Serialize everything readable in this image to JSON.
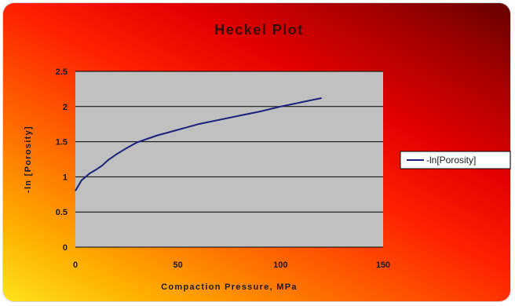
{
  "chart_data": {
    "type": "line",
    "title": "Heckel Plot",
    "xlabel": "Compaction Pressure, MPa",
    "ylabel": "-ln [Porosity]",
    "xlim": [
      0,
      150
    ],
    "ylim": [
      0,
      2.5
    ],
    "xticks": [
      "0",
      "50",
      "100",
      "150"
    ],
    "yticks": [
      "0",
      "0.5",
      "1",
      "1.5",
      "2",
      "2.5"
    ],
    "grid": true,
    "legend_position": "right",
    "plot_background": "#c0c0c0",
    "series": [
      {
        "name": "-ln[Porosity]",
        "color": "#1a1f7a",
        "x": [
          0,
          1,
          2,
          3,
          5,
          7,
          10,
          13,
          16,
          20,
          25,
          30,
          35,
          40,
          45,
          50,
          55,
          60,
          70,
          80,
          90,
          100,
          110,
          115,
          120
        ],
        "y": [
          0.8,
          0.85,
          0.9,
          0.95,
          1.0,
          1.05,
          1.1,
          1.16,
          1.24,
          1.32,
          1.41,
          1.49,
          1.54,
          1.59,
          1.63,
          1.67,
          1.71,
          1.75,
          1.81,
          1.87,
          1.93,
          2.0,
          2.06,
          2.09,
          2.12
        ]
      }
    ]
  }
}
